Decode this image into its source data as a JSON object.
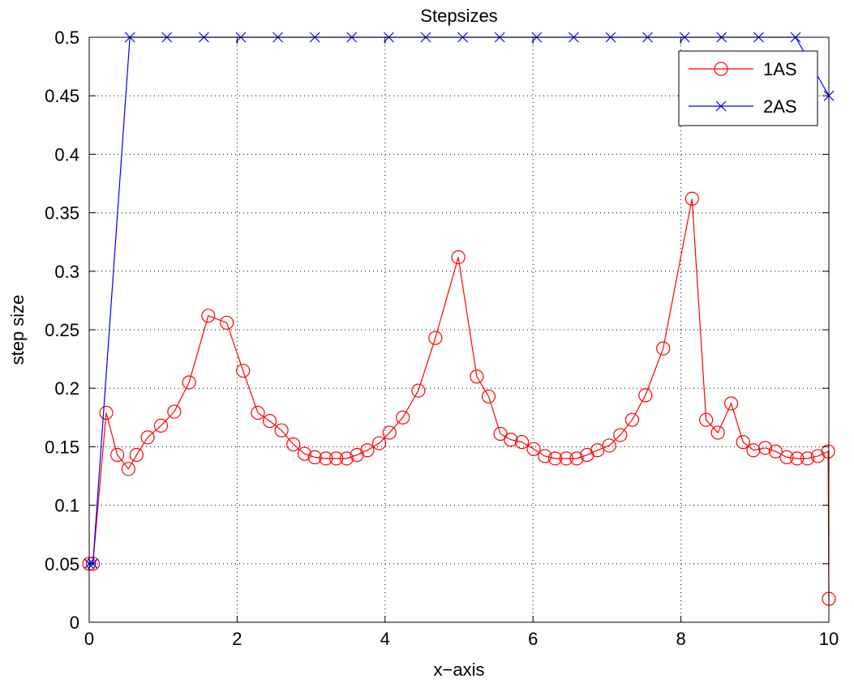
{
  "chart_data": {
    "type": "line",
    "title": "Stepsizes",
    "xlabel": "x−axis",
    "ylabel": "step size",
    "xlim": [
      0,
      10
    ],
    "ylim": [
      0,
      0.5
    ],
    "xticks": [
      "0",
      "2",
      "4",
      "6",
      "8",
      "10"
    ],
    "yticks": [
      "0",
      "0.05",
      "0.1",
      "0.15",
      "0.2",
      "0.25",
      "0.3",
      "0.35",
      "0.4",
      "0.45",
      "0.5"
    ],
    "grid": true,
    "legend_position": "top-right",
    "series": [
      {
        "name": "1AS",
        "color": "#ff0000",
        "marker": "circle",
        "x": [
          0.0,
          0.05,
          0.23,
          0.38,
          0.53,
          0.64,
          0.79,
          0.97,
          1.15,
          1.35,
          1.61,
          1.86,
          2.08,
          2.28,
          2.44,
          2.6,
          2.76,
          2.91,
          3.05,
          3.2,
          3.34,
          3.48,
          3.62,
          3.76,
          3.92,
          4.06,
          4.24,
          4.45,
          4.68,
          4.99,
          5.24,
          5.4,
          5.56,
          5.7,
          5.85,
          6.01,
          6.16,
          6.3,
          6.45,
          6.59,
          6.73,
          6.87,
          7.03,
          7.18,
          7.34,
          7.52,
          7.76,
          8.15,
          8.34,
          8.5,
          8.68,
          8.84,
          8.98,
          9.14,
          9.28,
          9.43,
          9.57,
          9.71,
          9.85,
          9.99,
          10.0
        ],
        "y": [
          0.05,
          0.05,
          0.179,
          0.143,
          0.131,
          0.143,
          0.158,
          0.168,
          0.18,
          0.205,
          0.262,
          0.256,
          0.215,
          0.179,
          0.172,
          0.164,
          0.152,
          0.144,
          0.141,
          0.14,
          0.14,
          0.14,
          0.143,
          0.147,
          0.153,
          0.162,
          0.175,
          0.198,
          0.243,
          0.312,
          0.21,
          0.193,
          0.161,
          0.156,
          0.154,
          0.148,
          0.142,
          0.14,
          0.14,
          0.14,
          0.143,
          0.147,
          0.151,
          0.16,
          0.173,
          0.194,
          0.234,
          0.362,
          0.173,
          0.162,
          0.187,
          0.154,
          0.147,
          0.149,
          0.146,
          0.141,
          0.14,
          0.14,
          0.142,
          0.146,
          0.02
        ]
      },
      {
        "name": "2AS",
        "color": "#0000ff",
        "marker": "x",
        "x": [
          0.0,
          0.05,
          0.55,
          1.05,
          1.55,
          2.05,
          2.55,
          3.05,
          3.55,
          4.05,
          4.55,
          5.05,
          5.55,
          6.05,
          6.55,
          7.05,
          7.55,
          8.05,
          8.55,
          9.05,
          9.55,
          10.0
        ],
        "y": [
          0.05,
          0.05,
          0.5,
          0.5,
          0.5,
          0.5,
          0.5,
          0.5,
          0.5,
          0.5,
          0.5,
          0.5,
          0.5,
          0.5,
          0.5,
          0.5,
          0.5,
          0.5,
          0.5,
          0.5,
          0.5,
          0.45
        ]
      }
    ]
  }
}
